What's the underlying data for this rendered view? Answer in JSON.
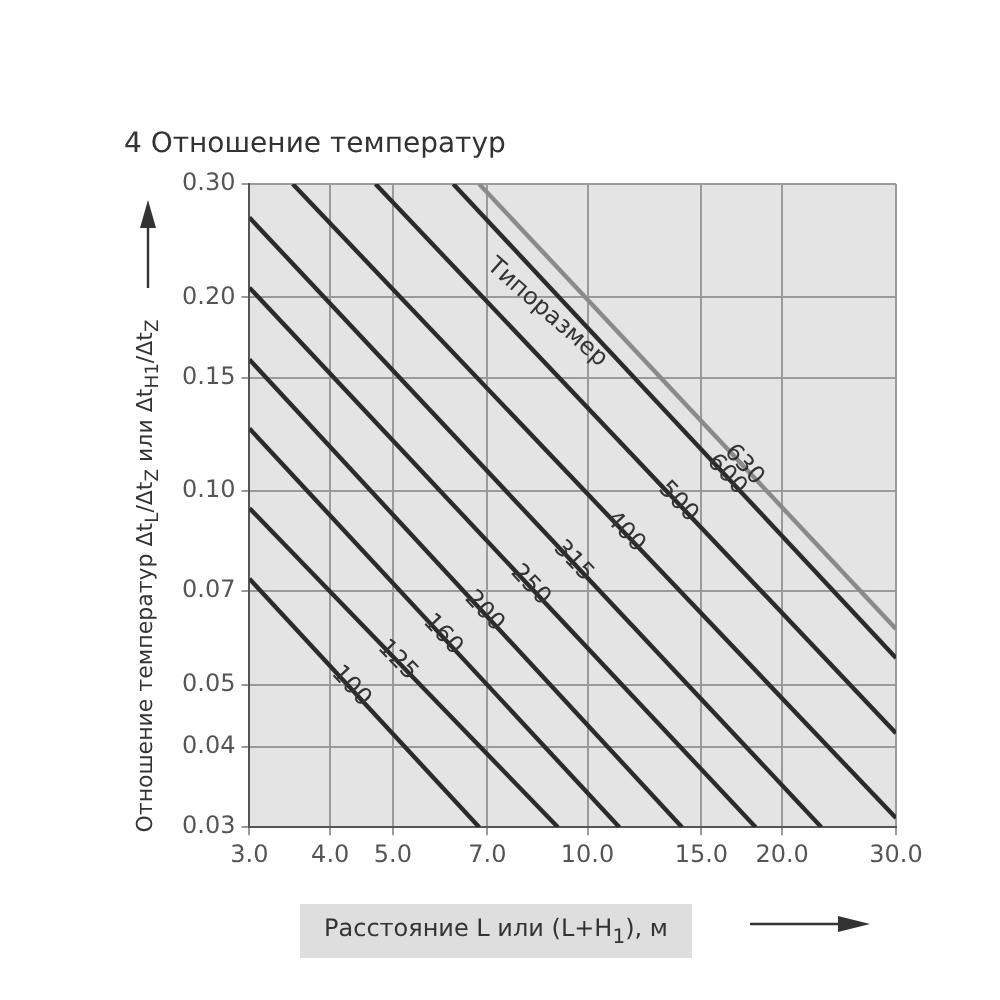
{
  "chart_data": {
    "type": "line",
    "title": "4 Отношение температур",
    "xlabel": "Расстояние L или (L+H$_{1}$), м",
    "ylabel": "Отношение температур Δt$_{L}$/Δt$_{Z}$ или Δt$_{H1}$/Δt$_{Z}$",
    "log": "xy",
    "grid": true,
    "legend": false,
    "marker": "none",
    "line_style": "solid",
    "xlim": [
      3,
      30
    ],
    "ylim": [
      0.03,
      0.3
    ],
    "xticks": [
      {
        "value": 3,
        "label": "3.0"
      },
      {
        "value": 4,
        "label": "4.0"
      },
      {
        "value": 5,
        "label": "5.0"
      },
      {
        "value": 7,
        "label": "7.0"
      },
      {
        "value": 10,
        "label": "10.0"
      },
      {
        "value": 15,
        "label": "15.0"
      },
      {
        "value": 20,
        "label": "20.0"
      },
      {
        "value": 30,
        "label": "30.0"
      }
    ],
    "yticks": [
      {
        "value": 0.03,
        "label": "0.03"
      },
      {
        "value": 0.04,
        "label": "0.04"
      },
      {
        "value": 0.05,
        "label": "0.05"
      },
      {
        "value": 0.07,
        "label": "0.07"
      },
      {
        "value": 0.1,
        "label": "0.10"
      },
      {
        "value": 0.15,
        "label": "0.15"
      },
      {
        "value": 0.2,
        "label": "0.20"
      },
      {
        "value": 0.3,
        "label": "0.30"
      }
    ],
    "annotations": [
      "Типоразмер"
    ],
    "series": [
      {
        "name": "100",
        "color": "#2b2b2b",
        "x": [
          3,
          6.8
        ],
        "values": [
          0.073,
          0.03
        ]
      },
      {
        "name": "125",
        "color": "#2b2b2b",
        "x": [
          3,
          9
        ],
        "values": [
          0.094,
          0.03
        ]
      },
      {
        "name": "160",
        "color": "#2b2b2b",
        "x": [
          3,
          11.2
        ],
        "values": [
          0.125,
          0.03
        ]
      },
      {
        "name": "200",
        "color": "#2b2b2b",
        "x": [
          3,
          14
        ],
        "values": [
          0.16,
          0.03
        ]
      },
      {
        "name": "250",
        "color": "#2b2b2b",
        "x": [
          3,
          18.2
        ],
        "values": [
          0.207,
          0.03
        ]
      },
      {
        "name": "315",
        "color": "#2b2b2b",
        "x": [
          3,
          23
        ],
        "values": [
          0.266,
          0.03
        ]
      },
      {
        "name": "400",
        "color": "#2b2b2b",
        "x": [
          3.5,
          30
        ],
        "values": [
          0.3,
          0.031
        ]
      },
      {
        "name": "500",
        "color": "#2b2b2b",
        "x": [
          4.7,
          30
        ],
        "values": [
          0.3,
          0.042
        ]
      },
      {
        "name": "600",
        "color": "#2b2b2b",
        "x": [
          6.2,
          30
        ],
        "values": [
          0.3,
          0.055
        ]
      },
      {
        "name": "630",
        "color": "#8a8a8a",
        "x": [
          6.8,
          30
        ],
        "values": [
          0.3,
          0.061
        ]
      }
    ]
  }
}
